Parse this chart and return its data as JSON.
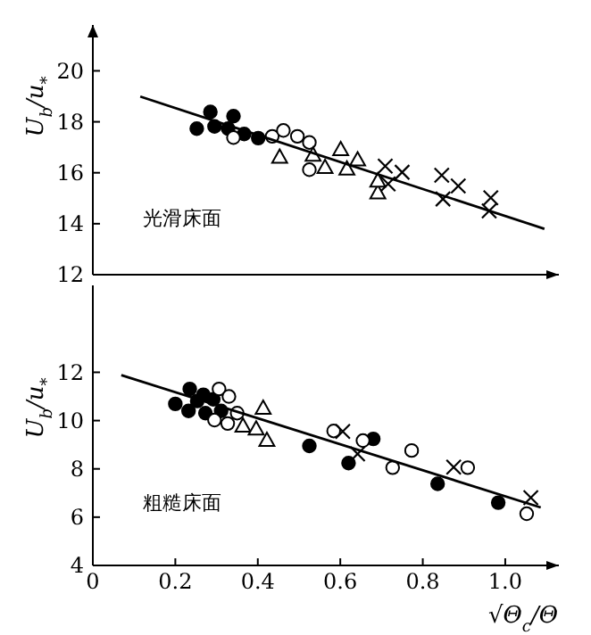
{
  "chart_data": [
    {
      "type": "scatter",
      "ylabel": "U$_{b}$/u$_{*}$",
      "annotations": [
        "光滑床面"
      ],
      "xlim": [
        0,
        1.13
      ],
      "ylim": [
        12,
        21.8
      ],
      "yticks": [
        12,
        14,
        16,
        18,
        20
      ],
      "tick_labels": "y",
      "series": [
        {
          "color": "#000000",
          "marker": "circle",
          "x": [
            0.252,
            0.285,
            0.295,
            0.328,
            0.341,
            0.367,
            0.401
          ],
          "values": [
            17.73,
            18.39,
            17.82,
            17.73,
            18.22,
            17.52,
            17.36
          ]
        },
        {
          "color": "#ffffff",
          "marker": "circle",
          "x": [
            0.341,
            0.435,
            0.462,
            0.496,
            0.525,
            0.525
          ],
          "values": [
            17.38,
            17.43,
            17.66,
            17.43,
            17.19,
            16.12
          ]
        },
        {
          "color": "#ffffff",
          "marker": "triangle",
          "x": [
            0.453,
            0.534,
            0.563,
            0.601,
            0.616,
            0.642,
            0.691,
            0.691
          ],
          "values": [
            16.6,
            16.68,
            16.2,
            16.9,
            16.14,
            16.5,
            15.2,
            15.67
          ]
        },
        {
          "color": "#000000",
          "marker": "cross",
          "x": [
            0.709,
            0.716,
            0.75,
            0.846,
            0.849,
            0.886,
            0.961,
            0.965
          ],
          "values": [
            16.26,
            15.56,
            16.02,
            15.9,
            14.97,
            15.48,
            14.5,
            15.02
          ]
        },
        {
          "type": "line",
          "color": "#000000",
          "x": [
            0.115,
            1.095
          ],
          "values": [
            18.99,
            13.8
          ]
        }
      ]
    },
    {
      "type": "scatter",
      "ylabel": "U$_{b}$/u$_{*}$",
      "xlabel": "√Θ$_{c}$/Θ",
      "annotations": [
        "粗糙床面"
      ],
      "xlim": [
        0,
        1.13
      ],
      "xticks": [
        0,
        0.2,
        0.4,
        0.6,
        0.8,
        {
          "value": 1,
          "label": "1.0"
        }
      ],
      "ylim": [
        4,
        15.6
      ],
      "yticks": [
        4,
        6,
        8,
        10,
        12
      ],
      "series": [
        {
          "color": "#000000",
          "marker": "circle",
          "x": [
            0.2,
            0.235,
            0.232,
            0.253,
            0.268,
            0.273,
            0.292,
            0.311,
            0.525,
            0.62,
            0.68,
            0.836,
            0.983
          ],
          "values": [
            10.69,
            11.31,
            10.4,
            10.81,
            11.07,
            10.31,
            10.88,
            10.4,
            8.95,
            8.24,
            9.24,
            7.38,
            6.6
          ]
        },
        {
          "color": "#ffffff",
          "marker": "circle",
          "x": [
            0.306,
            0.33,
            0.295,
            0.327,
            0.35,
            0.584,
            0.655,
            0.727,
            0.773,
            0.909,
            1.052
          ],
          "values": [
            11.31,
            11.0,
            10.02,
            9.88,
            10.31,
            9.57,
            9.17,
            8.05,
            8.76,
            8.05,
            6.14
          ]
        },
        {
          "color": "#ffffff",
          "marker": "triangle",
          "x": [
            0.364,
            0.396,
            0.413,
            0.422
          ],
          "values": [
            9.76,
            9.64,
            10.5,
            9.17
          ]
        },
        {
          "color": "#000000",
          "marker": "cross",
          "x": [
            0.606,
            0.642,
            0.875,
            1.062
          ],
          "values": [
            9.55,
            8.62,
            8.07,
            6.81
          ]
        },
        {
          "type": "line",
          "color": "#000000",
          "x": [
            0.069,
            1.086
          ],
          "values": [
            11.88,
            6.4
          ]
        }
      ]
    }
  ]
}
